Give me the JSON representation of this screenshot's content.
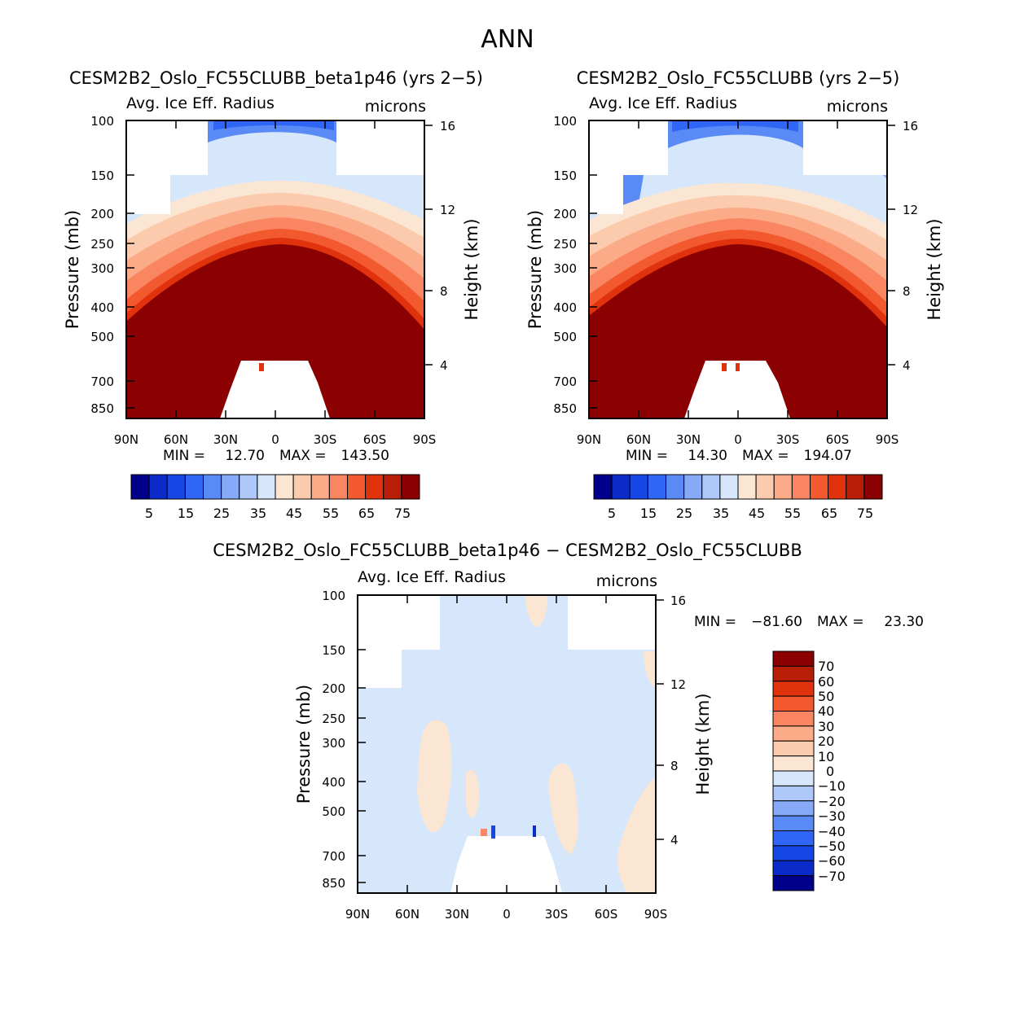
{
  "figure": {
    "title": "ANN"
  },
  "colorbar_colors": [
    "#00008b",
    "#0a2bc9",
    "#1547e6",
    "#2f66f5",
    "#5a8af5",
    "#86aaf7",
    "#aec8f9",
    "#d6e7fb",
    "#fbe6d3",
    "#fccbad",
    "#fbab88",
    "#fa8661",
    "#f2592f",
    "#e0320d",
    "#b81e06",
    "#8b0000"
  ],
  "chart_data": [
    {
      "type": "heatmap",
      "title": "CESM2B2_Oslo_FC55CLUBB_beta1p46 (yrs 2−5)",
      "variable": "Avg. Ice Eff. Radius",
      "units": "microns",
      "ylabel": "Pressure (mb)",
      "ylabel_right": "Height (km)",
      "x_ticks": [
        "90N",
        "60N",
        "30N",
        "0",
        "30S",
        "60S",
        "90S"
      ],
      "x_values": [
        90,
        60,
        30,
        0,
        -30,
        -60,
        -90
      ],
      "y_ticks": [
        "100",
        "150",
        "200",
        "250",
        "300",
        "400",
        "500",
        "700",
        "850"
      ],
      "y_values": [
        100,
        150,
        200,
        250,
        300,
        400,
        500,
        700,
        850
      ],
      "right_ticks": [
        "16",
        "12",
        "8",
        "4"
      ],
      "right_values": [
        16,
        12,
        8,
        4
      ],
      "ylim": [
        100,
        1000
      ],
      "min_label": "MIN =",
      "min_value": "12.70",
      "max_label": "MAX =",
      "max_value": "143.50",
      "colorbar_labels": [
        "5",
        "15",
        "25",
        "35",
        "45",
        "55",
        "65",
        "75"
      ],
      "colorbar_levels": [
        5,
        10,
        15,
        20,
        25,
        30,
        35,
        40,
        45,
        50,
        55,
        60,
        65,
        70,
        75
      ]
    },
    {
      "type": "heatmap",
      "title": "CESM2B2_Oslo_FC55CLUBB (yrs 2−5)",
      "variable": "Avg. Ice Eff. Radius",
      "units": "microns",
      "ylabel": "Pressure (mb)",
      "ylabel_right": "Height (km)",
      "x_ticks": [
        "90N",
        "60N",
        "30N",
        "0",
        "30S",
        "60S",
        "90S"
      ],
      "x_values": [
        90,
        60,
        30,
        0,
        -30,
        -60,
        -90
      ],
      "y_ticks": [
        "100",
        "150",
        "200",
        "250",
        "300",
        "400",
        "500",
        "700",
        "850"
      ],
      "y_values": [
        100,
        150,
        200,
        250,
        300,
        400,
        500,
        700,
        850
      ],
      "right_ticks": [
        "16",
        "12",
        "8",
        "4"
      ],
      "right_values": [
        16,
        12,
        8,
        4
      ],
      "ylim": [
        100,
        1000
      ],
      "min_label": "MIN =",
      "min_value": "14.30",
      "max_label": "MAX =",
      "max_value": "194.07",
      "colorbar_labels": [
        "5",
        "15",
        "25",
        "35",
        "45",
        "55",
        "65",
        "75"
      ],
      "colorbar_levels": [
        5,
        10,
        15,
        20,
        25,
        30,
        35,
        40,
        45,
        50,
        55,
        60,
        65,
        70,
        75
      ]
    },
    {
      "type": "heatmap",
      "title": "CESM2B2_Oslo_FC55CLUBB_beta1p46 − CESM2B2_Oslo_FC55CLUBB",
      "variable": "Avg. Ice Eff. Radius",
      "units": "microns",
      "ylabel": "Pressure (mb)",
      "ylabel_right": "Height (km)",
      "x_ticks": [
        "90N",
        "60N",
        "30N",
        "0",
        "30S",
        "60S",
        "90S"
      ],
      "x_values": [
        90,
        60,
        30,
        0,
        -30,
        -60,
        -90
      ],
      "y_ticks": [
        "100",
        "150",
        "200",
        "250",
        "300",
        "400",
        "500",
        "700",
        "850"
      ],
      "y_values": [
        100,
        150,
        200,
        250,
        300,
        400,
        500,
        700,
        850
      ],
      "right_ticks": [
        "16",
        "12",
        "8",
        "4"
      ],
      "right_values": [
        16,
        12,
        8,
        4
      ],
      "ylim": [
        100,
        1000
      ],
      "min_label": "MIN =",
      "min_value": "−81.60",
      "max_label": "MAX =",
      "max_value": "23.30",
      "colorbar_labels": [
        "70",
        "60",
        "50",
        "40",
        "30",
        "20",
        "10",
        "0",
        "−10",
        "−20",
        "−30",
        "−40",
        "−50",
        "−60",
        "−70"
      ],
      "colorbar_levels": [
        70,
        60,
        50,
        40,
        30,
        20,
        10,
        0,
        -10,
        -20,
        -30,
        -40,
        -50,
        -60,
        -70
      ]
    }
  ]
}
